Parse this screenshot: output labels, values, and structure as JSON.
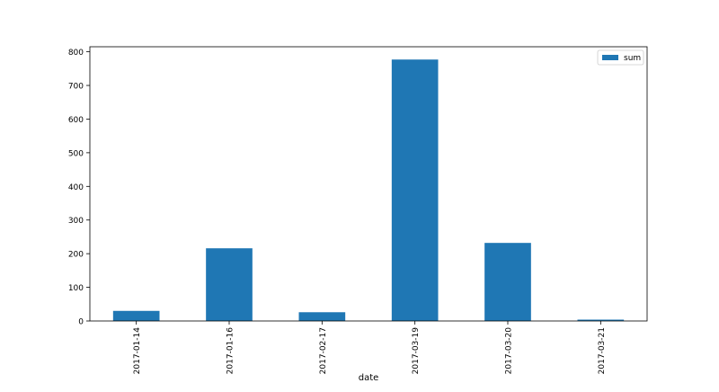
{
  "chart_data": {
    "type": "bar",
    "title": "",
    "xlabel": "date",
    "ylabel": "",
    "categories": [
      "2017-01-14",
      "2017-01-16",
      "2017-02-17",
      "2017-03-19",
      "2017-03-20",
      "2017-03-21"
    ],
    "series": [
      {
        "name": "sum",
        "values": [
          30,
          216,
          26,
          777,
          232,
          4
        ],
        "color": "#1f77b4"
      }
    ],
    "ylim": [
      0,
      815
    ],
    "yticks": [
      0,
      100,
      200,
      300,
      400,
      500,
      600,
      700,
      800
    ],
    "grid": false,
    "legend": {
      "placement": "top-right",
      "entries": [
        "sum"
      ]
    }
  }
}
